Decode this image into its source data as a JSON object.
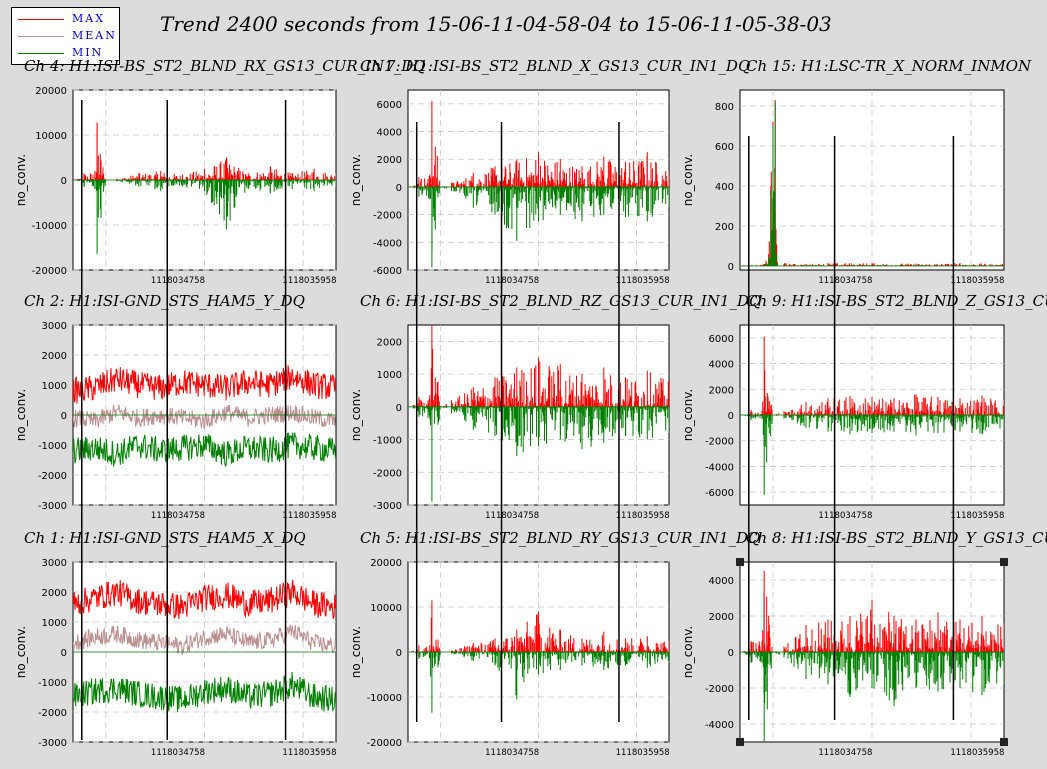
{
  "title": "Trend 2400 seconds from 15-06-11-04-58-04 to 15-06-11-05-38-03",
  "legend": [
    {
      "label": "MAX",
      "color": "#ff0000"
    },
    {
      "label": "MEAN",
      "color": "#c09090"
    },
    {
      "label": "MIN",
      "color": "#008000"
    }
  ],
  "colors": {
    "max": "#ff0000",
    "mean": "#bc8f8f",
    "min": "#008000",
    "cursor": "#000000"
  },
  "x_ticks": [
    "1118034758",
    "1118035958"
  ],
  "cursor_lines_x": [
    1118033880,
    1118034660,
    1118035740
  ],
  "chart_data": [
    {
      "type": "line",
      "title": "Ch 4: H1:ISI-BS_ST2_BLND_RX_GS13_CUR_IN1_DQ",
      "ylabel": "no_conv.",
      "ylim": [
        -20000,
        20000
      ],
      "yticks": [
        "20000",
        "10000",
        "0",
        "-10000",
        "-20000"
      ],
      "xlim": [
        1118033800,
        1118036200
      ],
      "series": [
        {
          "values_desc": "max",
          "x": [
            1118033800,
            1118033880,
            1118033900,
            1118034000,
            1118034020,
            1118034100,
            1118034200,
            1118034400,
            1118034600,
            1118034800,
            1118035000,
            1118035200,
            1118035400,
            1118035600,
            1118035800,
            1118036000,
            1118036200
          ],
          "y": [
            0,
            600,
            1500,
            2000,
            12800,
            0,
            300,
            1500,
            2000,
            1200,
            2500,
            5000,
            1500,
            3000,
            1500,
            2500,
            1500
          ]
        },
        {
          "values_desc": "min",
          "x": [
            1118033800,
            1118033880,
            1118033900,
            1118034000,
            1118034020,
            1118034100,
            1118034200,
            1118034400,
            1118034600,
            1118034800,
            1118035000,
            1118035200,
            1118035400,
            1118035600,
            1118035800,
            1118036000,
            1118036200
          ],
          "y": [
            0,
            -500,
            -1500,
            -2000,
            -16500,
            0,
            -300,
            -1500,
            -2500,
            -1500,
            -2500,
            -11000,
            -2000,
            -3000,
            -2000,
            -2500,
            -1500
          ]
        }
      ]
    },
    {
      "type": "line",
      "title": "Ch 7: H1:ISI-BS_ST2_BLND_X_GS13_CUR_IN1_DQ",
      "ylabel": "no_conv.",
      "ylim": [
        -6000,
        7000
      ],
      "yticks": [
        "6000",
        "4000",
        "2000",
        "0",
        "-2000",
        "-4000",
        "-6000"
      ],
      "xlim": [
        1118033800,
        1118036200
      ],
      "series": [
        {
          "values_desc": "max",
          "x": [
            1118033800,
            1118033880,
            1118033900,
            1118034000,
            1118034020,
            1118034100,
            1118034200,
            1118034400,
            1118034600,
            1118034800,
            1118035000,
            1118035200,
            1118035400,
            1118035600,
            1118035800,
            1118036000,
            1118036200
          ],
          "y": [
            0,
            200,
            700,
            900,
            6200,
            0,
            300,
            1000,
            1500,
            2000,
            2500,
            2000,
            1500,
            2200,
            1800,
            2500,
            1200
          ]
        },
        {
          "values_desc": "min",
          "x": [
            1118033800,
            1118033880,
            1118033900,
            1118034000,
            1118034020,
            1118034100,
            1118034200,
            1118034400,
            1118034600,
            1118034800,
            1118035000,
            1118035200,
            1118035400,
            1118035600,
            1118035800,
            1118036000,
            1118036200
          ],
          "y": [
            0,
            -200,
            -700,
            -900,
            -5800,
            0,
            -300,
            -1500,
            -2000,
            -3900,
            -2500,
            -2000,
            -2500,
            -2000,
            -2200,
            -2500,
            -1500
          ]
        }
      ]
    },
    {
      "type": "line",
      "title": "Ch 15: H1:LSC-TR_X_NORM_INMON",
      "ylabel": "no_conv.",
      "ylim": [
        -20,
        880
      ],
      "yticks": [
        "800",
        "600",
        "400",
        "200",
        "0"
      ],
      "xlim": [
        1118033800,
        1118036200
      ],
      "series": [
        {
          "values_desc": "max",
          "x": [
            1118033800,
            1118033950,
            1118034020,
            1118034060,
            1118034080,
            1118034100,
            1118034120,
            1118034140,
            1118034300,
            1118034600,
            1118035000,
            1118035400,
            1118035800,
            1118036200
          ],
          "y": [
            5,
            5,
            10,
            60,
            400,
            720,
            830,
            20,
            10,
            15,
            15,
            12,
            15,
            10
          ]
        },
        {
          "values_desc": "min",
          "x": [
            1118033800,
            1118033950,
            1118034020,
            1118034060,
            1118034080,
            1118034100,
            1118034120,
            1118034140,
            1118034300,
            1118034600,
            1118035000,
            1118035400,
            1118035800,
            1118036200
          ],
          "y": [
            0,
            0,
            5,
            40,
            380,
            700,
            820,
            10,
            5,
            5,
            5,
            5,
            5,
            5
          ]
        }
      ]
    },
    {
      "type": "line",
      "title": "Ch 2: H1:ISI-GND_STS_HAM5_Y_DQ",
      "ylabel": "no_conv.",
      "ylim": [
        -3000,
        3000
      ],
      "yticks": [
        "3000",
        "2000",
        "1000",
        "0",
        "-1000",
        "-2000",
        "-3000"
      ],
      "xlim": [
        1118033800,
        1118036200
      ],
      "series": [
        {
          "values_desc": "max",
          "x": [
            1118033800,
            1118034000,
            1118034200,
            1118034400,
            1118034600,
            1118034800,
            1118035000,
            1118035200,
            1118035400,
            1118035600,
            1118035800,
            1118036000,
            1118036200
          ],
          "y": [
            800,
            900,
            1200,
            1000,
            900,
            1100,
            1000,
            900,
            1100,
            1000,
            1300,
            1000,
            900
          ]
        },
        {
          "values_desc": "mean",
          "x": [
            1118033800,
            1118034000,
            1118034200,
            1118034400,
            1118034600,
            1118034800,
            1118035000,
            1118035200,
            1118035400,
            1118035600,
            1118035800,
            1118036000,
            1118036200
          ],
          "y": [
            -100,
            -200,
            100,
            -100,
            0,
            -100,
            -200,
            100,
            -100,
            0,
            100,
            -100,
            -200
          ]
        },
        {
          "values_desc": "min",
          "x": [
            1118033800,
            1118034000,
            1118034200,
            1118034400,
            1118034600,
            1118034800,
            1118035000,
            1118035200,
            1118035400,
            1118035600,
            1118035800,
            1118036000,
            1118036200
          ],
          "y": [
            -1200,
            -1100,
            -1300,
            -1000,
            -1200,
            -1100,
            -1000,
            -1300,
            -1100,
            -1200,
            -1000,
            -1100,
            -1200
          ]
        }
      ]
    },
    {
      "type": "line",
      "title": "Ch 6: H1:ISI-BS_ST2_BLND_RZ_GS13_CUR_IN1_DQ",
      "ylabel": "no_conv.",
      "ylim": [
        -3000,
        2500
      ],
      "yticks": [
        "2000",
        "1000",
        "0",
        "-1000",
        "-2000",
        "-3000"
      ],
      "xlim": [
        1118033800,
        1118036200
      ],
      "series": [
        {
          "values_desc": "max",
          "x": [
            1118033800,
            1118033880,
            1118033900,
            1118034000,
            1118034020,
            1118034100,
            1118034200,
            1118034400,
            1118034600,
            1118034800,
            1118035000,
            1118035200,
            1118035400,
            1118035600,
            1118035800,
            1118036000,
            1118036200
          ],
          "y": [
            0,
            100,
            300,
            350,
            2500,
            0,
            200,
            600,
            900,
            1200,
            1500,
            1300,
            1000,
            1200,
            900,
            1100,
            800
          ]
        },
        {
          "values_desc": "min",
          "x": [
            1118033800,
            1118033880,
            1118033900,
            1118034000,
            1118034020,
            1118034100,
            1118034200,
            1118034400,
            1118034600,
            1118034800,
            1118035000,
            1118035200,
            1118035400,
            1118035600,
            1118035800,
            1118036000,
            1118036200
          ],
          "y": [
            0,
            -100,
            -300,
            -350,
            -2900,
            0,
            -200,
            -700,
            -900,
            -1500,
            -1200,
            -1000,
            -1300,
            -1100,
            -900,
            -1000,
            -800
          ]
        }
      ]
    },
    {
      "type": "line",
      "title": "Ch 9: H1:ISI-BS_ST2_BLND_Z_GS13_CUR_IN1_DQ",
      "ylabel": "no_conv.",
      "ylim": [
        -7000,
        7000
      ],
      "yticks": [
        "6000",
        "4000",
        "2000",
        "0",
        "-2000",
        "-4000",
        "-6000"
      ],
      "xlim": [
        1118033800,
        1118036200
      ],
      "series": [
        {
          "values_desc": "max",
          "x": [
            1118033800,
            1118033880,
            1118033900,
            1118034000,
            1118034020,
            1118034100,
            1118034200,
            1118034400,
            1118034600,
            1118034800,
            1118035000,
            1118035200,
            1118035400,
            1118035600,
            1118035800,
            1118036000,
            1118036200
          ],
          "y": [
            0,
            200,
            400,
            300,
            6100,
            0,
            300,
            1000,
            1300,
            1500,
            1400,
            1300,
            1600,
            1400,
            1300,
            1500,
            1200
          ]
        },
        {
          "values_desc": "min",
          "x": [
            1118033800,
            1118033880,
            1118033900,
            1118034000,
            1118034020,
            1118034100,
            1118034200,
            1118034400,
            1118034600,
            1118034800,
            1118035000,
            1118035200,
            1118035400,
            1118035600,
            1118035800,
            1118036000,
            1118036200
          ],
          "y": [
            0,
            -200,
            -400,
            -300,
            -6200,
            0,
            -300,
            -1000,
            -1300,
            -1500,
            -1400,
            -1300,
            -1600,
            -1400,
            -1300,
            -1500,
            -1200
          ]
        }
      ]
    },
    {
      "type": "line",
      "title": "Ch 1: H1:ISI-GND_STS_HAM5_X_DQ",
      "ylabel": "no_conv.",
      "ylim": [
        -3000,
        3000
      ],
      "yticks": [
        "3000",
        "2000",
        "1000",
        "0",
        "-1000",
        "-2000",
        "-3000"
      ],
      "xlim": [
        1118033800,
        1118036200
      ],
      "series": [
        {
          "values_desc": "max",
          "x": [
            1118033800,
            1118034000,
            1118034200,
            1118034400,
            1118034600,
            1118034800,
            1118035000,
            1118035200,
            1118035400,
            1118035600,
            1118035800,
            1118036000,
            1118036200
          ],
          "y": [
            1600,
            1800,
            2000,
            1700,
            1600,
            1500,
            1800,
            1900,
            1600,
            1700,
            2000,
            1600,
            1500
          ]
        },
        {
          "values_desc": "mean",
          "x": [
            1118033800,
            1118034000,
            1118034200,
            1118034400,
            1118034600,
            1118034800,
            1118035000,
            1118035200,
            1118035400,
            1118035600,
            1118035800,
            1118036000,
            1118036200
          ],
          "y": [
            300,
            500,
            600,
            400,
            300,
            200,
            500,
            600,
            300,
            400,
            700,
            300,
            200
          ]
        },
        {
          "values_desc": "min",
          "x": [
            1118033800,
            1118034000,
            1118034200,
            1118034400,
            1118034600,
            1118034800,
            1118035000,
            1118035200,
            1118035400,
            1118035600,
            1118035800,
            1118036000,
            1118036200
          ],
          "y": [
            -1500,
            -1300,
            -1200,
            -1400,
            -1500,
            -1600,
            -1300,
            -1200,
            -1500,
            -1400,
            -1100,
            -1500,
            -1600
          ]
        }
      ]
    },
    {
      "type": "line",
      "title": "Ch 5: H1:ISI-BS_ST2_BLND_RY_GS13_CUR_IN1_DQ",
      "ylabel": "no_conv.",
      "ylim": [
        -20000,
        20000
      ],
      "yticks": [
        "20000",
        "10000",
        "0",
        "-10000",
        "-20000"
      ],
      "xlim": [
        1118033800,
        1118036200
      ],
      "series": [
        {
          "values_desc": "max",
          "x": [
            1118033800,
            1118033880,
            1118033900,
            1118034000,
            1118034020,
            1118034100,
            1118034200,
            1118034400,
            1118034600,
            1118034800,
            1118035000,
            1118035200,
            1118035400,
            1118035600,
            1118035800,
            1118036000,
            1118036200
          ],
          "y": [
            0,
            500,
            1500,
            1500,
            11500,
            0,
            300,
            2000,
            3000,
            5000,
            9000,
            5000,
            3000,
            4500,
            3000,
            3500,
            2500
          ]
        },
        {
          "values_desc": "min",
          "x": [
            1118033800,
            1118033880,
            1118033900,
            1118034000,
            1118034020,
            1118034100,
            1118034200,
            1118034400,
            1118034600,
            1118034800,
            1118035000,
            1118035200,
            1118035400,
            1118035600,
            1118035800,
            1118036000,
            1118036200
          ],
          "y": [
            0,
            -500,
            -1500,
            -1500,
            -13500,
            0,
            -300,
            -2000,
            -3000,
            -10500,
            -5000,
            -4000,
            -3000,
            -4000,
            -3000,
            -3500,
            -2500
          ]
        }
      ]
    },
    {
      "type": "line",
      "title": "Ch 8: H1:ISI-BS_ST2_BLND_Y_GS13_CUR_IN1_DQ",
      "ylabel": "no_conv.",
      "ylim": [
        -5000,
        5000
      ],
      "yticks": [
        "4000",
        "2000",
        "0",
        "-2000",
        "-4000"
      ],
      "xlim": [
        1118033800,
        1118036200
      ],
      "series": [
        {
          "values_desc": "max",
          "x": [
            1118033800,
            1118033880,
            1118033900,
            1118034000,
            1118034020,
            1118034100,
            1118034200,
            1118034400,
            1118034600,
            1118034800,
            1118035000,
            1118035200,
            1118035400,
            1118035600,
            1118035800,
            1118036000,
            1118036200
          ],
          "y": [
            0,
            200,
            600,
            600,
            4500,
            0,
            300,
            1500,
            1800,
            2000,
            2900,
            2000,
            1800,
            2200,
            1800,
            2000,
            1600
          ]
        },
        {
          "values_desc": "min",
          "x": [
            1118033800,
            1118033880,
            1118033900,
            1118034000,
            1118034020,
            1118034100,
            1118034200,
            1118034400,
            1118034600,
            1118034800,
            1118035000,
            1118035200,
            1118035400,
            1118035600,
            1118035800,
            1118036000,
            1118036200
          ],
          "y": [
            0,
            -200,
            -600,
            -600,
            -5000,
            0,
            -300,
            -1500,
            -1800,
            -2500,
            -2000,
            -3000,
            -2000,
            -2200,
            -2000,
            -2400,
            -1800
          ]
        }
      ]
    }
  ]
}
